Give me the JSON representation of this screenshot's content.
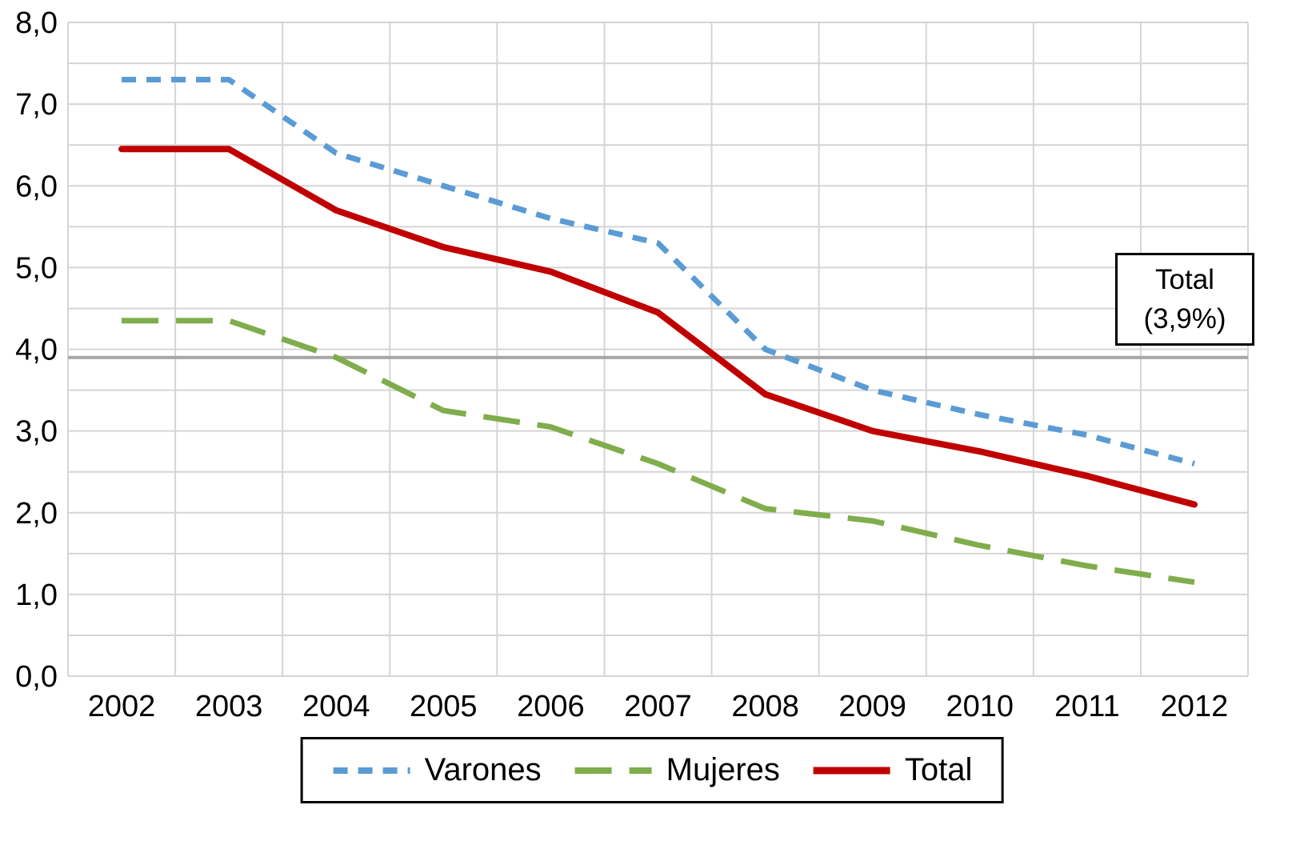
{
  "chart_data": {
    "type": "line",
    "title": "",
    "xlabel": "",
    "ylabel": "",
    "categories": [
      "2002",
      "2003",
      "2004",
      "2005",
      "2006",
      "2007",
      "2008",
      "2009",
      "2010",
      "2011",
      "2012"
    ],
    "series": [
      {
        "name": "Varones",
        "color": "#5B9BD5",
        "dash": "18 13",
        "width": 7,
        "values": [
          7.3,
          7.3,
          6.4,
          6.0,
          5.6,
          5.3,
          4.0,
          3.5,
          3.2,
          2.95,
          2.6
        ]
      },
      {
        "name": "Mujeres",
        "color": "#7FAD4C",
        "dash": "46 22",
        "width": 7,
        "values": [
          4.35,
          4.35,
          3.9,
          3.25,
          3.05,
          2.6,
          2.05,
          1.9,
          1.6,
          1.35,
          1.15
        ]
      },
      {
        "name": "Total",
        "color": "#C00000",
        "dash": "",
        "width": 8,
        "values": [
          6.45,
          6.45,
          5.7,
          5.25,
          4.95,
          4.45,
          3.45,
          3.0,
          2.75,
          2.45,
          2.1
        ]
      }
    ],
    "ylim": [
      0,
      8
    ],
    "y_tick_labels": [
      "0,0",
      "1,0",
      "2,0",
      "3,0",
      "4,0",
      "5,0",
      "6,0",
      "7,0",
      "8,0"
    ],
    "gridlines": {
      "horizontal_step": 0.5,
      "color": "#D5D5D5"
    },
    "reference_line": {
      "value": 3.9,
      "color": "#A6A6A6",
      "width": 4
    },
    "annotation": {
      "line1": "Total",
      "line2": "(3,9%)"
    },
    "legend_position": "bottom"
  }
}
